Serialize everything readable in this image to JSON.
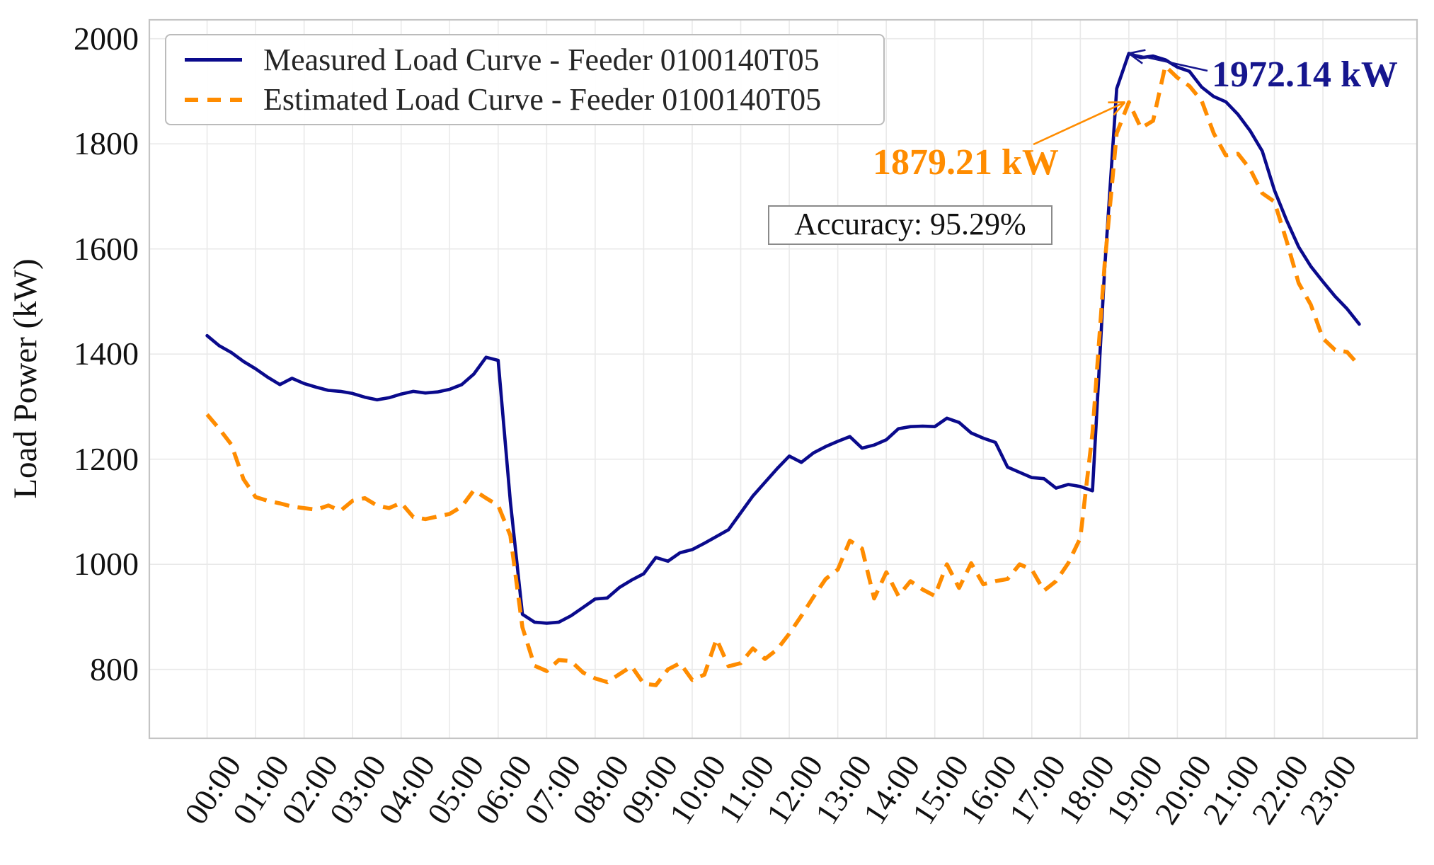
{
  "chart_data": {
    "type": "line",
    "title": "",
    "xlabel": "",
    "ylabel": "Load Power (kW)",
    "x_start": "00:00",
    "x_interval_minutes": 15,
    "x_tick_labels": [
      "00:00",
      "01:00",
      "02:00",
      "03:00",
      "04:00",
      "05:00",
      "06:00",
      "07:00",
      "08:00",
      "09:00",
      "10:00",
      "11:00",
      "12:00",
      "13:00",
      "14:00",
      "15:00",
      "16:00",
      "17:00",
      "18:00",
      "19:00",
      "20:00",
      "21:00",
      "22:00",
      "23:00"
    ],
    "y_ticks": [
      "2000",
      "1800",
      "1600",
      "1400",
      "1200",
      "1000",
      "800"
    ],
    "y_tick_values": [
      2000,
      1800,
      1600,
      1400,
      1200,
      1000,
      800
    ],
    "ylim": [
      669,
      2036
    ],
    "xlim_hours": [
      -1.19,
      24.94
    ],
    "grid": true,
    "legend_position": "upper left",
    "series": [
      {
        "name": "Measured Load Curve - Feeder 0100140T05",
        "color": "#0a0a8c",
        "style": "solid",
        "values": [
          1435,
          1416,
          1403,
          1386,
          1372,
          1356,
          1342,
          1354,
          1344,
          1337,
          1331,
          1329,
          1325,
          1318,
          1313,
          1317,
          1324,
          1329,
          1326,
          1328,
          1333,
          1342,
          1362,
          1394,
          1388,
          1120,
          905,
          890,
          888,
          890,
          902,
          918,
          934,
          936,
          956,
          970,
          982,
          1013,
          1006,
          1022,
          1028,
          1040,
          1053,
          1066,
          1098,
          1130,
          1156,
          1182,
          1206,
          1194,
          1212,
          1224,
          1234,
          1243,
          1221,
          1227,
          1237,
          1258,
          1262,
          1263,
          1262,
          1278,
          1270,
          1250,
          1240,
          1232,
          1185,
          1175,
          1165,
          1163,
          1145,
          1152,
          1148,
          1140,
          1560,
          1905,
          1972.14,
          1964,
          1967,
          1960,
          1946,
          1938,
          1908,
          1890,
          1880,
          1856,
          1825,
          1786,
          1712,
          1655,
          1604,
          1567,
          1538,
          1510,
          1486,
          1457
        ]
      },
      {
        "name": "Estimated Load Curve - Feeder 0100140T05",
        "color": "#ff8c00",
        "style": "dashed",
        "values": [
          1285,
          1258,
          1228,
          1162,
          1128,
          1121,
          1116,
          1110,
          1107,
          1104,
          1112,
          1102,
          1121,
          1126,
          1112,
          1107,
          1117,
          1090,
          1086,
          1091,
          1096,
          1110,
          1141,
          1126,
          1112,
          1055,
          880,
          807,
          797,
          818,
          816,
          794,
          783,
          776,
          791,
          806,
          773,
          770,
          800,
          812,
          780,
          790,
          858,
          806,
          812,
          840,
          820,
          838,
          868,
          902,
          938,
          972,
          990,
          1045,
          1030,
          935,
          985,
          940,
          968,
          952,
          940,
          1000,
          955,
          1002,
          962,
          968,
          972,
          1000,
          990,
          950,
          968,
          1002,
          1050,
          1250,
          1570,
          1820,
          1879.21,
          1830,
          1844,
          1948,
          1926,
          1910,
          1882,
          1820,
          1778,
          1781,
          1752,
          1706,
          1690,
          1616,
          1535,
          1494,
          1430,
          1408,
          1404,
          1378
        ]
      }
    ],
    "annotations": [
      {
        "label": "1972.14 kW",
        "color": "#16168e",
        "series": "measured",
        "target_hour": 19.0,
        "target_value": 1972.14
      },
      {
        "label": "1879.21 kW",
        "color": "#ff8c00",
        "series": "estimated",
        "target_hour": 18.92,
        "target_value": 1879.21
      }
    ],
    "accuracy_label": "Accuracy: 95.29%",
    "colors": {
      "measured": "#0a0a8c",
      "estimated": "#ff8c00",
      "grid": "#e9e9e9",
      "spine": "#c4c4c4"
    }
  }
}
